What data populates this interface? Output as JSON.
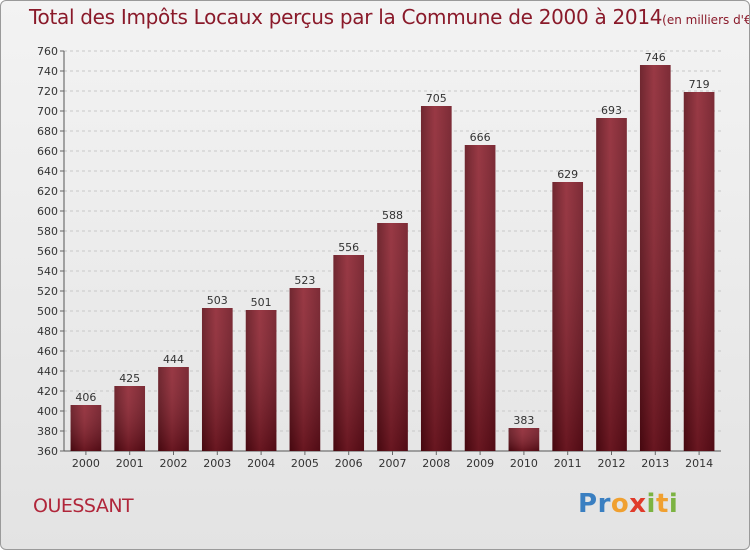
{
  "chart_data": {
    "type": "bar",
    "title": "Total des Impôts Locaux perçus par la Commune de 2000 à 2014",
    "title_unit": "(en milliers d'€)",
    "categories": [
      "2000",
      "2001",
      "2002",
      "2003",
      "2004",
      "2005",
      "2006",
      "2007",
      "2008",
      "2009",
      "2010",
      "2011",
      "2012",
      "2013",
      "2014"
    ],
    "values": [
      406,
      425,
      444,
      503,
      501,
      523,
      556,
      588,
      705,
      666,
      383,
      629,
      693,
      746,
      719
    ],
    "ylim": [
      360,
      760
    ],
    "yticks": [
      360,
      380,
      400,
      420,
      440,
      460,
      480,
      500,
      520,
      540,
      560,
      580,
      600,
      620,
      640,
      660,
      680,
      700,
      720,
      740,
      760
    ],
    "xlabel": "",
    "ylabel": "",
    "grid": true,
    "bar_color": "#8b1e2b"
  },
  "commune": "OUESSANT",
  "logo": {
    "letters": [
      "P",
      "r",
      "o",
      "x",
      "i",
      "t",
      "i"
    ],
    "colors": [
      "#3a7fc1",
      "#3a7fc1",
      "#f0a030",
      "#e03a2a",
      "#7cb342",
      "#f0a030",
      "#7cb342"
    ]
  }
}
